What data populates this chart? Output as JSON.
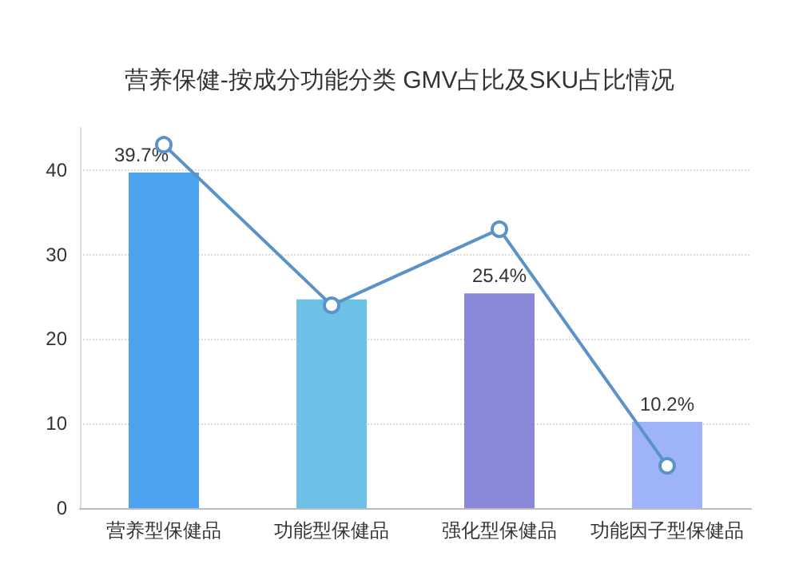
{
  "chart_data": {
    "type": "bar",
    "title": "营养保健-按成分功能分类 GMV占比及SKU占比情况",
    "categories": [
      "营养型保健品",
      "功能型保健品",
      "强化型保健品",
      "功能因子型保健品"
    ],
    "series": [
      {
        "colors": [
          "#4da3f0",
          "#6ec1e6",
          "#8a88d8",
          "#9fb3fb"
        ],
        "values": [
          39.7,
          24.7,
          25.4,
          10.2
        ],
        "value_labels": [
          "39.7%",
          null,
          "25.4%",
          "10.2%"
        ]
      },
      {
        "type": "line",
        "color": "#5b93c8",
        "values": [
          43,
          24,
          33,
          5
        ],
        "marker": "circle"
      }
    ],
    "ylim": [
      0,
      45
    ],
    "yticks": [
      0,
      10,
      20,
      30,
      40
    ],
    "grid": "y"
  }
}
